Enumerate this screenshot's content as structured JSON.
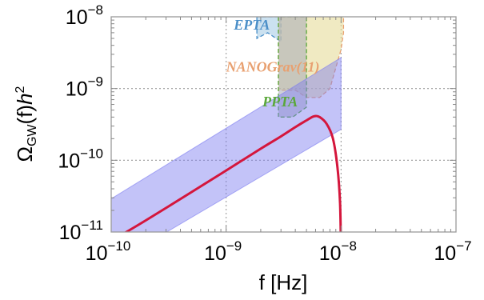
{
  "chart_data": {
    "type": "line",
    "xlabel": "f [Hz]",
    "ylabel": "Ω_GW(f)h²",
    "x_scale": "log",
    "y_scale": "log",
    "xlim": [
      1e-10,
      1e-07
    ],
    "ylim": [
      1e-11,
      1e-08
    ],
    "grid": true,
    "x_ticks": [
      {
        "base": "10",
        "exp": "−10"
      },
      {
        "base": "10",
        "exp": "−9"
      },
      {
        "base": "10",
        "exp": "−8"
      },
      {
        "base": "10",
        "exp": "−7"
      }
    ],
    "y_ticks": [
      {
        "base": "10",
        "exp": "−11"
      },
      {
        "base": "10",
        "exp": "−10"
      },
      {
        "base": "10",
        "exp": "−9"
      },
      {
        "base": "10",
        "exp": "−8"
      }
    ],
    "series": [
      {
        "kind": "line",
        "color": "#d4163c",
        "x": [
          1e-10,
          2e-10,
          5e-10,
          1e-09,
          2e-09,
          3e-09,
          4e-09,
          5e-09,
          5.8e-09,
          6.5e-09,
          7.5e-09,
          8.5e-09,
          9.3e-09,
          9.8e-09,
          1e-08
        ],
        "y": [
          7.5e-12,
          1.45e-11,
          3.6e-11,
          7.2e-11,
          1.45e-10,
          2.15e-10,
          2.9e-10,
          3.6e-10,
          4.1e-10,
          4e-10,
          3.2e-10,
          2e-10,
          8e-11,
          2.5e-11,
          5e-12
        ]
      },
      {
        "kind": "band",
        "color": "#7b7bf0",
        "x": [
          1e-10,
          1e-08
        ],
        "y_low": [
          3.5e-12,
          2.7e-10
        ],
        "y_high": [
          2.9e-11,
          2.7e-09
        ]
      }
    ],
    "regions": [
      {
        "name": "EPTA",
        "color": "#4b8fc8",
        "fill": "#a9cde6",
        "x": [
          1.85e-09,
          1.85e-09,
          2.3e-09,
          3e-09,
          3e-09
        ],
        "y": [
          1e-08,
          5e-09,
          6e-09,
          4.5e-09,
          1e-08
        ]
      },
      {
        "name": "NANOGrav(11)",
        "color": "#e8a070",
        "fill": "#e6dc9a",
        "x": [
          2.85e-09,
          2.85e-09,
          4e-09,
          5e-09,
          6.5e-09,
          8e-09,
          9.2e-09,
          1e-08,
          1.05e-08,
          1.05e-08
        ],
        "y": [
          1e-08,
          9.5e-10,
          9.5e-10,
          7.5e-10,
          7.5e-10,
          1e-09,
          2.2e-09,
          3.5e-09,
          6e-09,
          1e-08
        ]
      },
      {
        "name": "PPTA",
        "color": "#5aa83a",
        "fill": "#a7aab8",
        "x": [
          2.85e-09,
          2.85e-09,
          3.8e-09,
          5e-09,
          5e-09
        ],
        "y": [
          1e-08,
          4e-10,
          4e-10,
          5.5e-10,
          1e-08
        ]
      }
    ]
  }
}
